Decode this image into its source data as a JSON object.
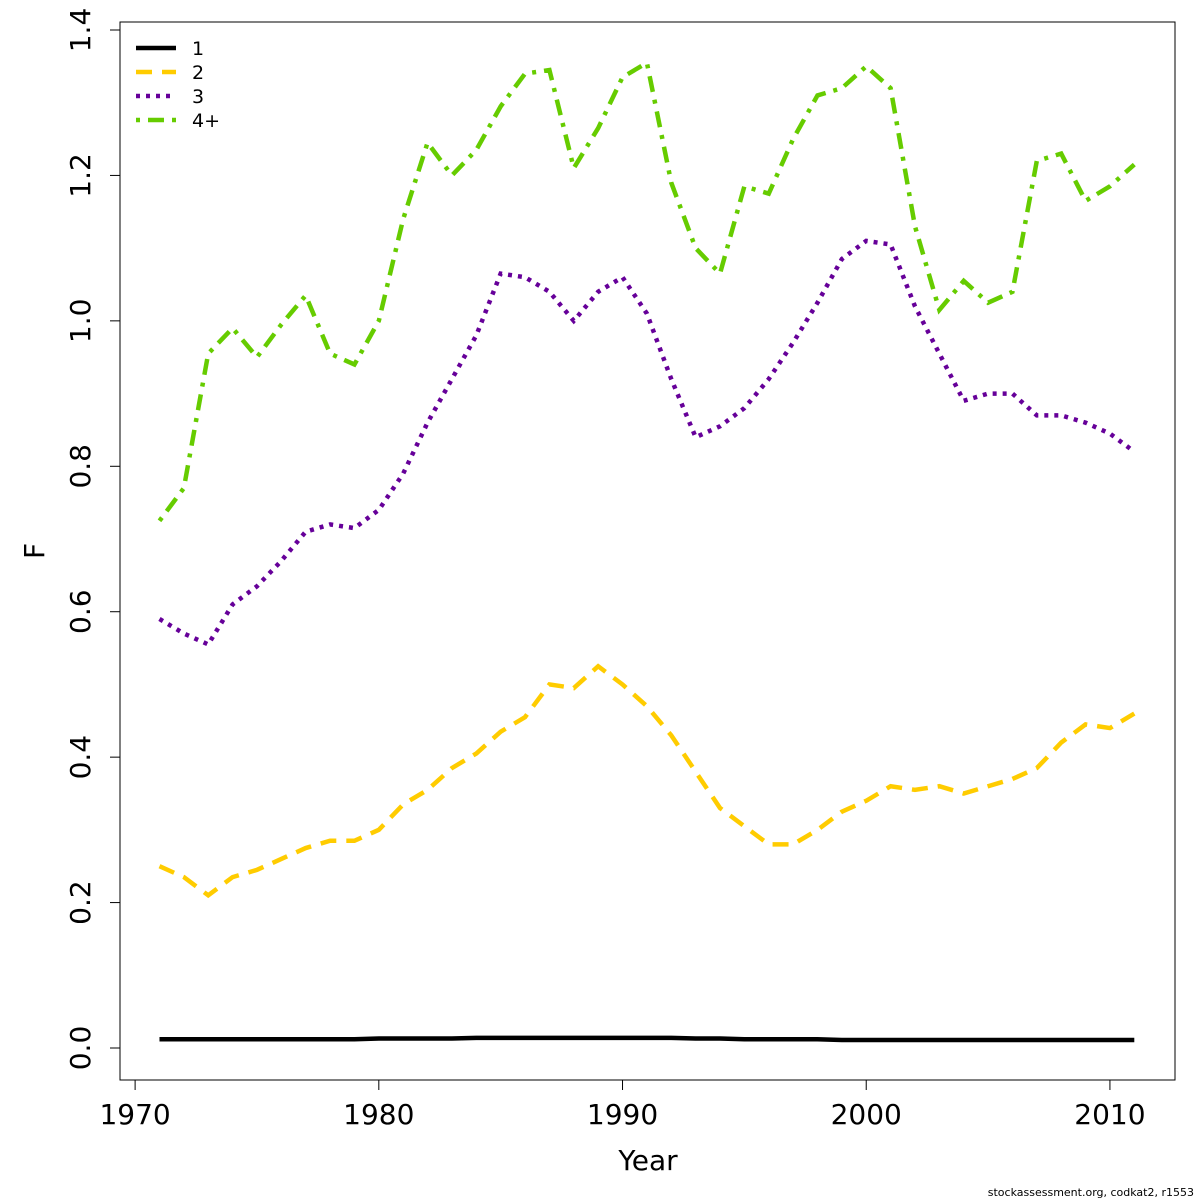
{
  "chart_data": {
    "type": "line",
    "x_label": "Year",
    "y_label": "F",
    "footer": "stockassessment.org, codkat2, r1553",
    "legend": "top-left",
    "xlim": [
      1969.38,
      2012.67
    ],
    "ylim": [
      -0.044,
      1.411
    ],
    "xticks": [
      1970,
      1980,
      1990,
      2000,
      2010
    ],
    "yticks": [
      {
        "value": 0,
        "label": "0.0"
      },
      0.2,
      0.4,
      0.6,
      0.8,
      {
        "value": 1,
        "label": "1.0"
      },
      1.2,
      1.4
    ],
    "x": [
      1971,
      1972,
      1973,
      1974,
      1975,
      1976,
      1977,
      1978,
      1979,
      1980,
      1981,
      1982,
      1983,
      1984,
      1985,
      1986,
      1987,
      1988,
      1989,
      1990,
      1991,
      1992,
      1993,
      1994,
      1995,
      1996,
      1997,
      1998,
      1999,
      2000,
      2001,
      2002,
      2003,
      2004,
      2005,
      2006,
      2007,
      2008,
      2009,
      2010,
      2011
    ],
    "series": [
      {
        "name": "1",
        "color": "#000000",
        "linestyle": "solid",
        "values": [
          0.012,
          0.012,
          0.012,
          0.012,
          0.012,
          0.012,
          0.012,
          0.012,
          0.012,
          0.013,
          0.013,
          0.013,
          0.013,
          0.014,
          0.014,
          0.014,
          0.014,
          0.014,
          0.014,
          0.014,
          0.014,
          0.014,
          0.013,
          0.013,
          0.012,
          0.012,
          0.012,
          0.012,
          0.011,
          0.011,
          0.011,
          0.011,
          0.011,
          0.011,
          0.011,
          0.011,
          0.011,
          0.011,
          0.011,
          0.011,
          0.011
        ]
      },
      {
        "name": "2",
        "color": "#ffcc00",
        "linestyle": "dashed",
        "values": [
          0.25,
          0.235,
          0.21,
          0.235,
          0.245,
          0.26,
          0.275,
          0.285,
          0.285,
          0.3,
          0.335,
          0.355,
          0.385,
          0.405,
          0.435,
          0.455,
          0.5,
          0.495,
          0.525,
          0.5,
          0.47,
          0.43,
          0.38,
          0.33,
          0.305,
          0.28,
          0.28,
          0.3,
          0.325,
          0.34,
          0.36,
          0.355,
          0.36,
          0.35,
          0.36,
          0.37,
          0.385,
          0.42,
          0.445,
          0.44,
          0.46
        ]
      },
      {
        "name": "3",
        "color": "#660099",
        "linestyle": "dotted",
        "values": [
          0.59,
          0.57,
          0.555,
          0.61,
          0.635,
          0.67,
          0.71,
          0.72,
          0.715,
          0.74,
          0.79,
          0.86,
          0.92,
          0.98,
          1.065,
          1.06,
          1.04,
          1.0,
          1.04,
          1.06,
          1.01,
          0.92,
          0.84,
          0.855,
          0.88,
          0.92,
          0.97,
          1.025,
          1.085,
          1.11,
          1.105,
          1.02,
          0.955,
          0.89,
          0.9,
          0.9,
          0.87,
          0.87,
          0.86,
          0.845,
          0.82
        ]
      },
      {
        "name": "4+",
        "color": "#66cc00",
        "linestyle": "dashdot",
        "values": [
          0.725,
          0.77,
          0.955,
          0.99,
          0.95,
          0.995,
          1.035,
          0.955,
          0.94,
          1.0,
          1.14,
          1.245,
          1.2,
          1.235,
          1.295,
          1.34,
          1.345,
          1.21,
          1.265,
          1.335,
          1.355,
          1.19,
          1.1,
          1.065,
          1.185,
          1.175,
          1.25,
          1.31,
          1.32,
          1.35,
          1.32,
          1.13,
          1.015,
          1.055,
          1.025,
          1.04,
          1.22,
          1.23,
          1.165,
          1.185,
          1.215
        ]
      }
    ]
  }
}
